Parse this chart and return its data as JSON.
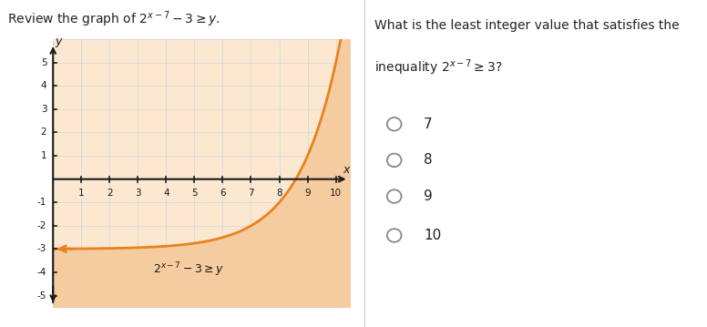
{
  "fig_width": 7.76,
  "fig_height": 3.59,
  "dpi": 100,
  "background_color": "#ffffff",
  "left_panel_title": "Review the graph of $2^{x-7}-3 \\geq y$.",
  "graph_xlim": [
    0,
    10.5
  ],
  "graph_ylim": [
    -5.5,
    6.0
  ],
  "graph_xticks": [
    1,
    2,
    3,
    4,
    5,
    6,
    7,
    8,
    9,
    10
  ],
  "graph_yticks": [
    -5,
    -4,
    -3,
    -2,
    -1,
    1,
    2,
    3,
    4,
    5
  ],
  "curve_color": "#e8821e",
  "plot_bg_color": "#fce8d0",
  "fill_color": "#f5cca0",
  "grid_color": "#d8d8d8",
  "axis_color": "#1a1a1a",
  "curve_label": "$2^{x-7}-3 \\geq y$",
  "right_panel_title_line1": "What is the least integer value that satisfies the",
  "right_panel_title_line2": "inequality $2^{x-7} \\geq 3$?",
  "choices": [
    "7",
    "8",
    "9",
    "10"
  ],
  "text_color": "#222222",
  "radio_color": "#888888"
}
